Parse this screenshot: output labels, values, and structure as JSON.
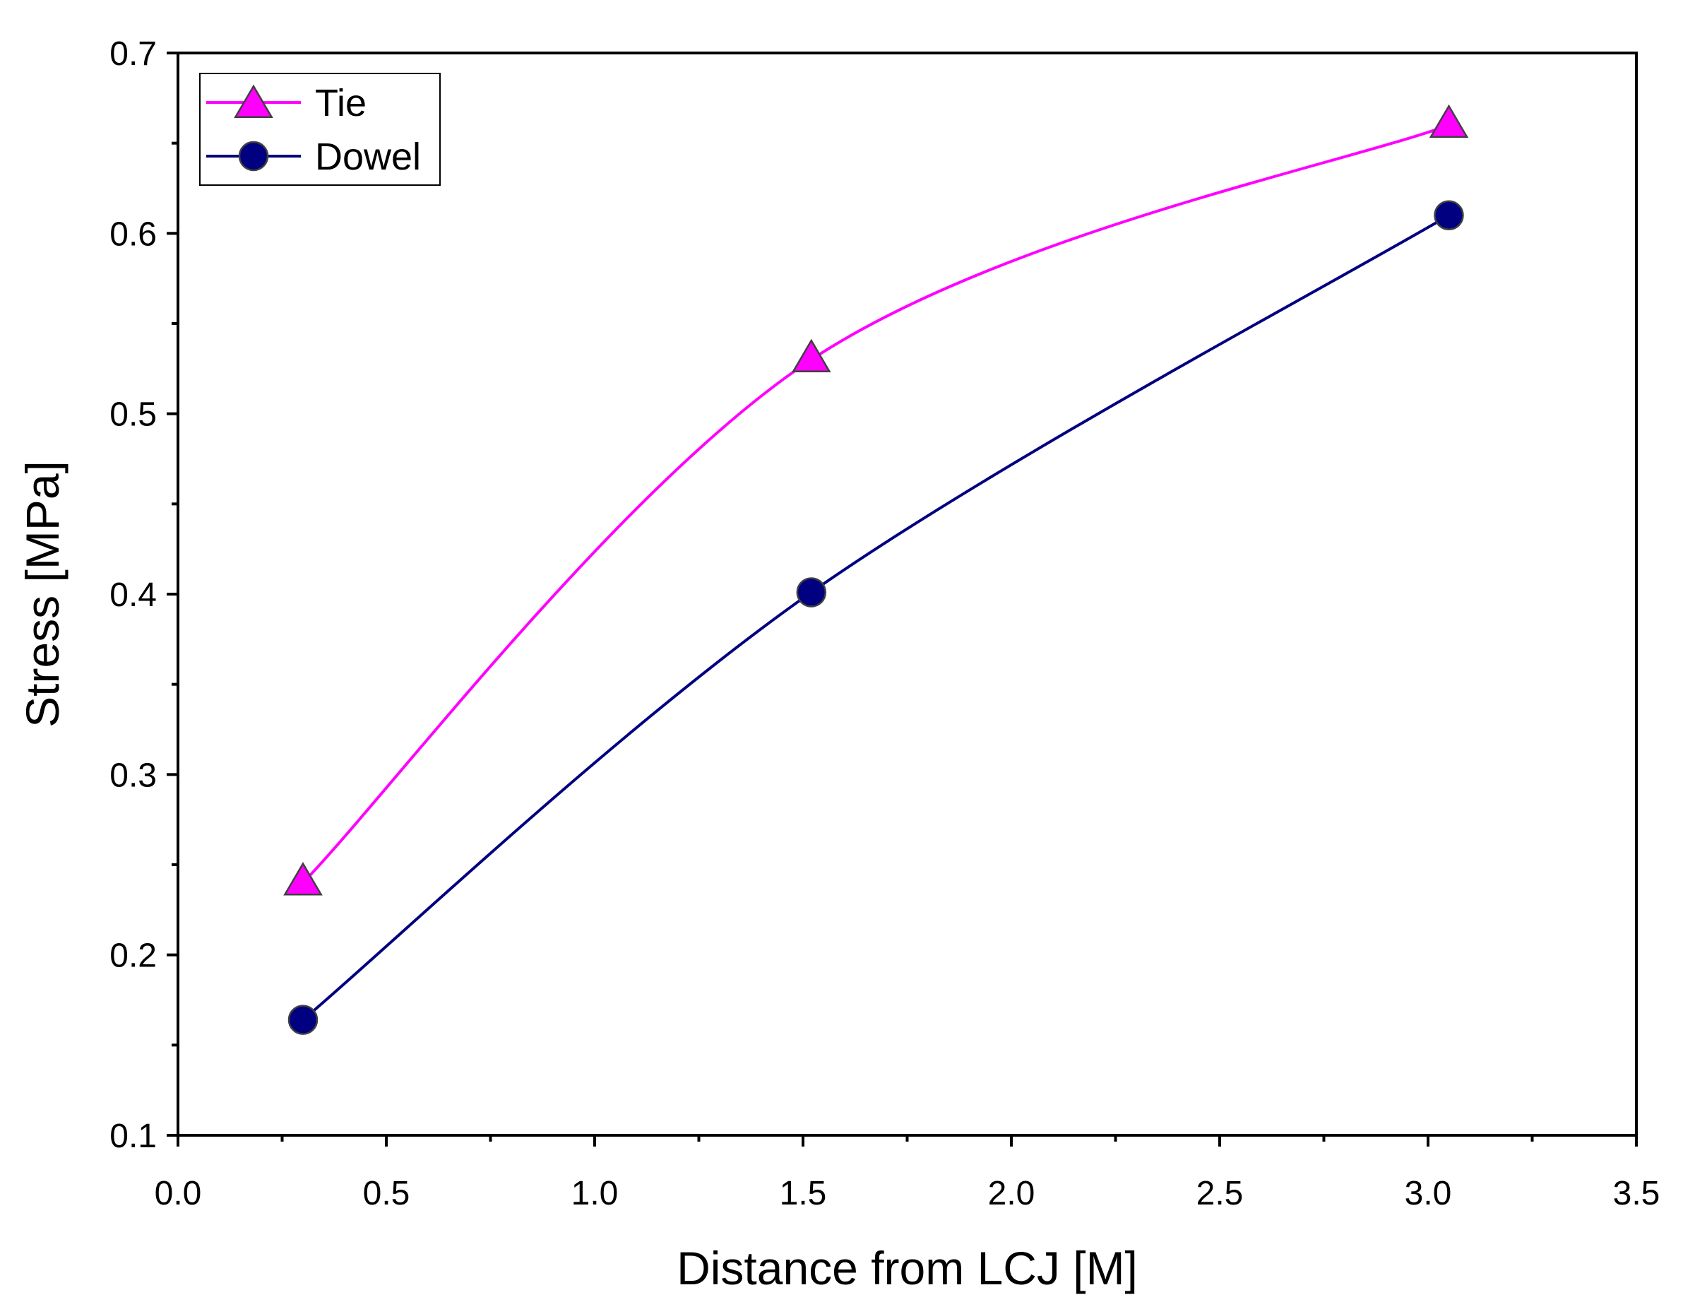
{
  "chart_data": {
    "type": "line",
    "title": "",
    "xlabel": "Distance from LCJ [M]",
    "ylabel": "Stress [MPa]",
    "xlim": [
      0.0,
      3.5
    ],
    "ylim": [
      0.1,
      0.7
    ],
    "xticks": [
      "0.0",
      "0.5",
      "1.0",
      "1.5",
      "2.0",
      "2.5",
      "3.0",
      "3.5"
    ],
    "yticks": [
      "0.1",
      "0.2",
      "0.3",
      "0.4",
      "0.5",
      "0.6",
      "0.7"
    ],
    "grid": false,
    "legend_position": "top-left",
    "series": [
      {
        "name": "Tie",
        "marker": "triangle",
        "color": "#FF00FF",
        "x": [
          0.3,
          1.52,
          3.05
        ],
        "y": [
          0.24,
          0.53,
          0.66
        ]
      },
      {
        "name": "Dowel",
        "marker": "circle",
        "color": "#000080",
        "x": [
          0.3,
          1.52,
          3.05
        ],
        "y": [
          0.164,
          0.401,
          0.61
        ]
      }
    ]
  }
}
